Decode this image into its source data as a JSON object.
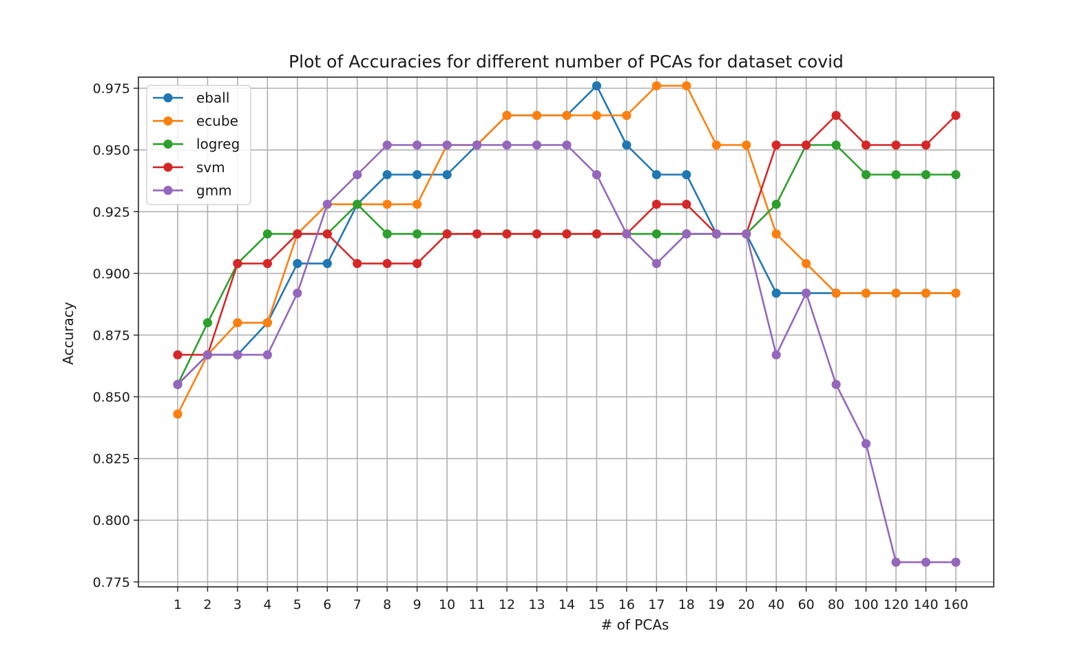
{
  "chart_data": {
    "type": "line",
    "title": "Plot of Accuracies for different number of PCAs for dataset covid",
    "xlabel": "# of PCAs",
    "ylabel": "Accuracy",
    "categories": [
      "1",
      "2",
      "3",
      "4",
      "5",
      "6",
      "7",
      "8",
      "9",
      "10",
      "11",
      "12",
      "13",
      "14",
      "15",
      "16",
      "17",
      "18",
      "19",
      "20",
      "40",
      "60",
      "80",
      "100",
      "120",
      "140",
      "160"
    ],
    "ylim": [
      0.773,
      0.9795
    ],
    "yticks": [
      0.775,
      0.8,
      0.825,
      0.85,
      0.875,
      0.9,
      0.925,
      0.95,
      0.975
    ],
    "ytick_labels": [
      "0.775",
      "0.800",
      "0.825",
      "0.850",
      "0.875",
      "0.900",
      "0.925",
      "0.950",
      "0.975"
    ],
    "grid": true,
    "legend_position": "top-left",
    "series": [
      {
        "name": "eball",
        "color": "#1f77b4",
        "values": [
          0.855,
          0.867,
          0.867,
          0.88,
          0.904,
          0.904,
          0.928,
          0.94,
          0.94,
          0.94,
          0.952,
          0.964,
          0.964,
          0.964,
          0.976,
          0.952,
          0.94,
          0.94,
          0.916,
          0.916,
          0.892,
          0.892,
          0.892,
          0.892,
          0.892,
          0.892,
          0.892
        ]
      },
      {
        "name": "ecube",
        "color": "#ff7f0e",
        "values": [
          0.843,
          0.867,
          0.88,
          0.88,
          0.916,
          0.928,
          0.928,
          0.928,
          0.928,
          0.952,
          0.952,
          0.964,
          0.964,
          0.964,
          0.964,
          0.964,
          0.976,
          0.976,
          0.952,
          0.952,
          0.916,
          0.904,
          0.892,
          0.892,
          0.892,
          0.892,
          0.892
        ]
      },
      {
        "name": "logreg",
        "color": "#2ca02c",
        "values": [
          0.855,
          0.88,
          0.904,
          0.916,
          0.916,
          0.916,
          0.928,
          0.916,
          0.916,
          0.916,
          0.916,
          0.916,
          0.916,
          0.916,
          0.916,
          0.916,
          0.916,
          0.916,
          0.916,
          0.916,
          0.928,
          0.952,
          0.952,
          0.94,
          0.94,
          0.94,
          0.94
        ]
      },
      {
        "name": "svm",
        "color": "#d62728",
        "values": [
          0.867,
          0.867,
          0.904,
          0.904,
          0.916,
          0.916,
          0.904,
          0.904,
          0.904,
          0.916,
          0.916,
          0.916,
          0.916,
          0.916,
          0.916,
          0.916,
          0.928,
          0.928,
          0.916,
          0.916,
          0.952,
          0.952,
          0.964,
          0.952,
          0.952,
          0.952,
          0.964
        ]
      },
      {
        "name": "gmm",
        "color": "#9467bd",
        "values": [
          0.855,
          0.867,
          0.867,
          0.867,
          0.892,
          0.928,
          0.94,
          0.952,
          0.952,
          0.952,
          0.952,
          0.952,
          0.952,
          0.952,
          0.94,
          0.916,
          0.904,
          0.916,
          0.916,
          0.916,
          0.867,
          0.892,
          0.855,
          0.831,
          0.783,
          0.783,
          0.783
        ]
      }
    ]
  }
}
